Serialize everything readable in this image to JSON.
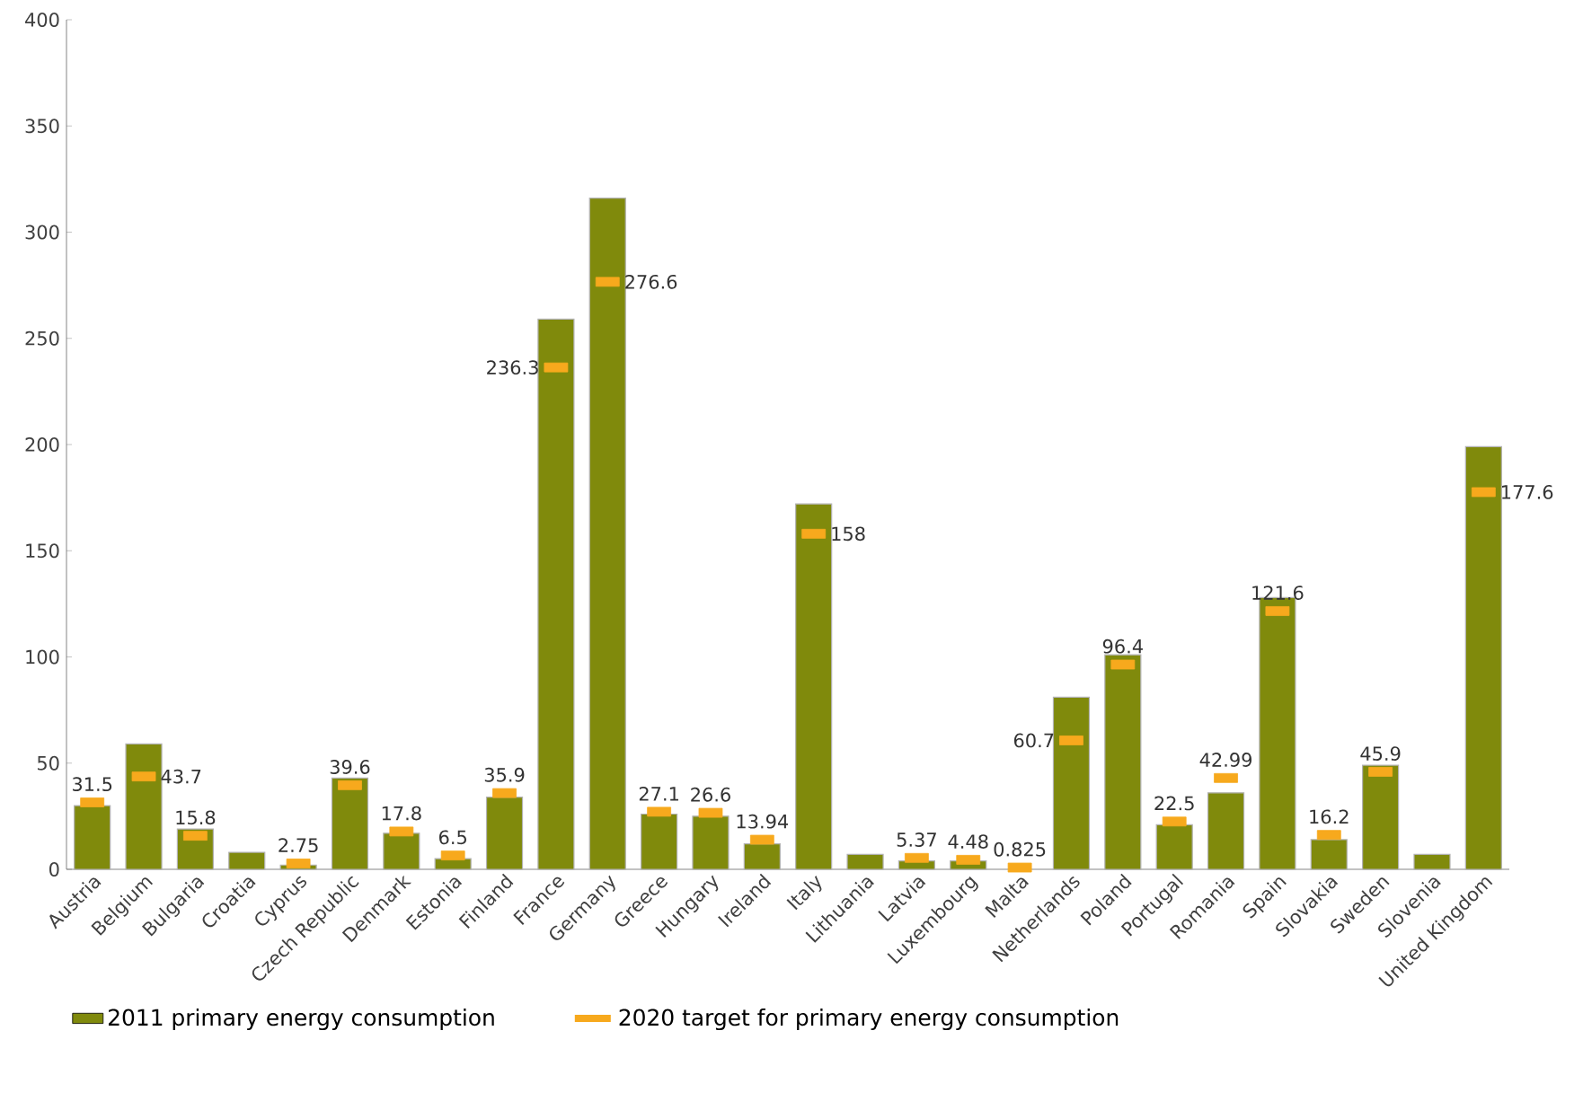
{
  "chart_data": {
    "type": "bar",
    "categories": [
      "Austria",
      "Belgium",
      "Bulgaria",
      "Croatia",
      "Cyprus",
      "Czech Republic",
      "Denmark",
      "Estonia",
      "Finland",
      "France",
      "Germany",
      "Greece",
      "Hungary",
      "Ireland",
      "Italy",
      "Lithuania",
      "Latvia",
      "Luxembourg",
      "Malta",
      "Netherlands",
      "Poland",
      "Portugal",
      "Romania",
      "Spain",
      "Slovakia",
      "Sweden",
      "Slovenia",
      "United Kingdom"
    ],
    "series": [
      {
        "name": "2011 primary energy consumption",
        "color": "#808a0c",
        "values": [
          30,
          59,
          19,
          8,
          2,
          43,
          17,
          5,
          34,
          259,
          316,
          26,
          25,
          12,
          172,
          7,
          4,
          4,
          null,
          81,
          101,
          21,
          36,
          128,
          14,
          49,
          7,
          199
        ]
      },
      {
        "name": "2020 target for primary energy consumption",
        "type": "scatter",
        "color": "#f7a91d",
        "data_labels": true,
        "values": [
          31.5,
          43.7,
          15.8,
          null,
          2.75,
          39.6,
          17.8,
          6.5,
          35.9,
          236.3,
          276.6,
          27.1,
          26.6,
          13.94,
          158,
          null,
          5.37,
          4.48,
          0.825,
          60.7,
          96.4,
          22.5,
          42.99,
          121.6,
          16.2,
          45.9,
          null,
          177.6
        ]
      }
    ],
    "ylim": [
      0,
      400
    ],
    "yticks": [
      0,
      50,
      100,
      150,
      200,
      250,
      300,
      350,
      400
    ],
    "grid": false,
    "legend": "bottom"
  }
}
